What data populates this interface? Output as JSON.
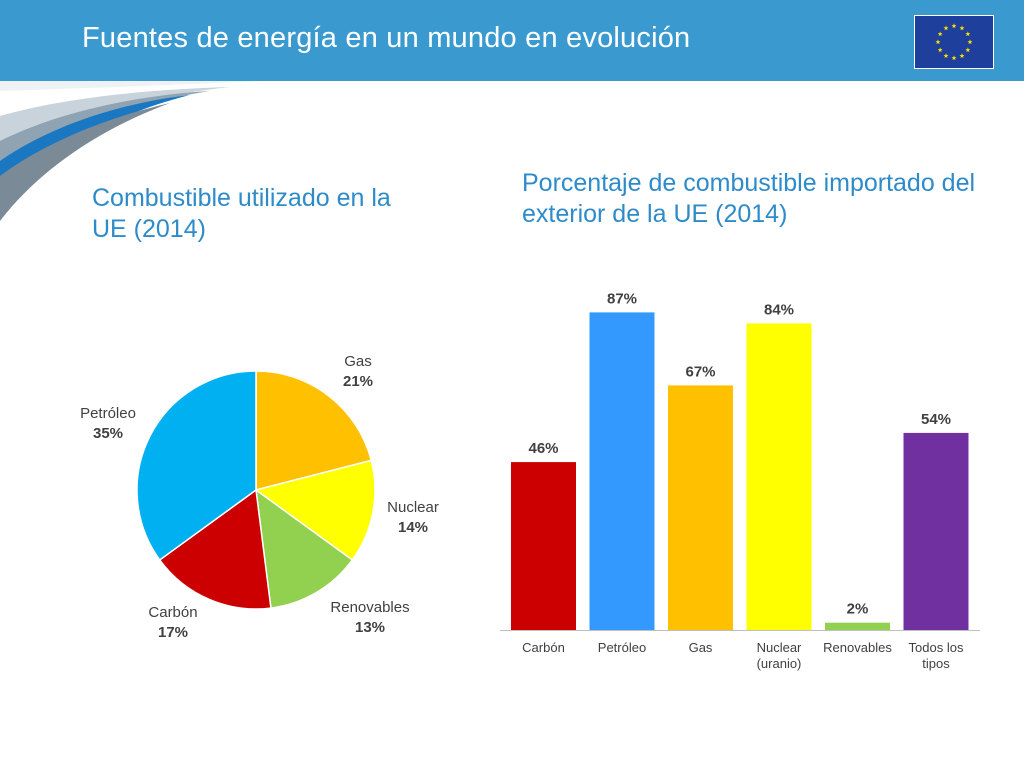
{
  "slide": {
    "title": "Fuentes de energía en un mundo en evolución",
    "accent_color": "#3a9ad0",
    "heading_color": "#2e8bc9"
  },
  "logo": {
    "icon": "eu-flag-icon",
    "background": "#1e3f9b",
    "star_color": "#ffdd00"
  },
  "left_panel": {
    "heading": "Combustible utilizado en la UE (2014)"
  },
  "right_panel": {
    "heading": "Porcentaje de combustible importado del exterior de la UE (2014)"
  },
  "chart_data": [
    {
      "type": "pie",
      "title": "Combustible utilizado en la UE (2014)",
      "slices": [
        {
          "label": "Gas",
          "value": 21,
          "display": "21%",
          "color": "#ffc000"
        },
        {
          "label": "Nuclear",
          "value": 14,
          "display": "14%",
          "color": "#ffff00"
        },
        {
          "label": "Renovables",
          "value": 13,
          "display": "13%",
          "color": "#92d050"
        },
        {
          "label": "Carbón",
          "value": 17,
          "display": "17%",
          "color": "#cc0000"
        },
        {
          "label": "Petróleo",
          "value": 35,
          "display": "35%",
          "color": "#00b0f0"
        }
      ]
    },
    {
      "type": "bar",
      "title": "Porcentaje de combustible importado del exterior de la UE (2014)",
      "categories": [
        "Carbón",
        "Petróleo",
        "Gas",
        "Nuclear (uranio)",
        "Renovables",
        "Todos los tipos"
      ],
      "values": [
        46,
        87,
        67,
        84,
        2,
        54
      ],
      "value_labels": [
        "46%",
        "87%",
        "67%",
        "84%",
        "2%",
        "54%"
      ],
      "colors": [
        "#cc0000",
        "#3399ff",
        "#ffc000",
        "#ffff00",
        "#92d050",
        "#7030a0"
      ],
      "ylim": [
        0,
        100
      ]
    }
  ]
}
